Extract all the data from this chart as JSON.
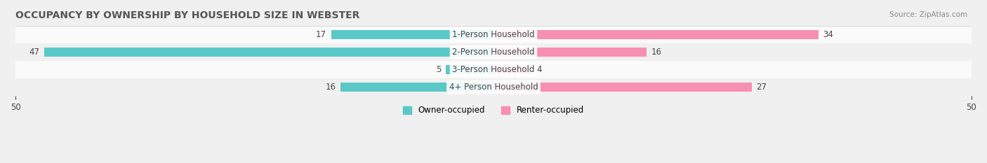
{
  "title": "OCCUPANCY BY OWNERSHIP BY HOUSEHOLD SIZE IN WEBSTER",
  "source": "Source: ZipAtlas.com",
  "categories": [
    "1-Person Household",
    "2-Person Household",
    "3-Person Household",
    "4+ Person Household"
  ],
  "owner_values": [
    17,
    47,
    5,
    16
  ],
  "renter_values": [
    34,
    16,
    4,
    27
  ],
  "owner_color": "#5BC8C8",
  "renter_color": "#F78FB3",
  "xlim": 50,
  "background_color": "#F0F0F0",
  "row_bg_light": "#FAFAFA",
  "row_bg_dark": "#F0F0F0",
  "label_fontsize": 8.5,
  "title_fontsize": 10,
  "bar_height": 0.55
}
